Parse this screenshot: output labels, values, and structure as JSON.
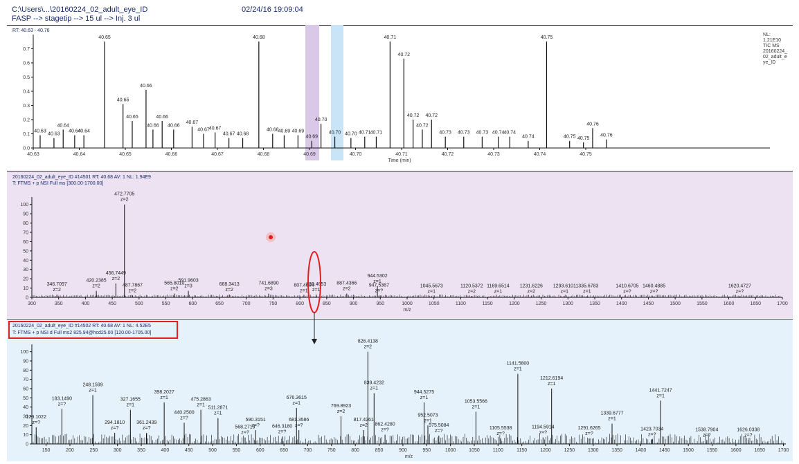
{
  "header": {
    "path": "C:\\Users\\...\\20160224_02_adult_eye_ID",
    "subtitle": "FASP --> stagetip --> 15 ul --> Inj. 3 ul",
    "datetime": "02/24/16 19:09:04"
  },
  "colors": {
    "line": "#111111",
    "panel_ms1": "#ede2f2",
    "panel_ms2": "#e6f2fb",
    "highlight_purple": "#d9c8e8",
    "highlight_blue": "#c9e4f7",
    "red": "#e02020",
    "label_blue": "#1a2a6c"
  },
  "chart_data": [
    {
      "type": "line",
      "id": "tic",
      "title": "RT: 40.63 - 40.76",
      "xlabel": "Time (min)",
      "ylabel": "",
      "xlim": [
        40.63,
        40.79
      ],
      "ylim": [
        0,
        0.78
      ],
      "yticks": [
        "0.0",
        "0.1",
        "0.2",
        "0.3",
        "0.4",
        "0.5",
        "0.6",
        "0.7"
      ],
      "xticks": [
        "40.63",
        "40.64",
        "40.65",
        "40.66",
        "40.67",
        "40.68",
        "40.69",
        "40.70",
        "40.71",
        "40.72",
        "40.73",
        "40.74",
        "40.75"
      ],
      "nl_info": [
        "NL:",
        "1.21E10",
        "TIC  MS",
        "20160224_",
        "02_adult_e",
        "ye_ID"
      ],
      "peaks": [
        {
          "x": 40.6315,
          "y": 0.09,
          "label": "40.63"
        },
        {
          "x": 40.6345,
          "y": 0.07,
          "label": "40.63"
        },
        {
          "x": 40.6365,
          "y": 0.13,
          "label": "40.64"
        },
        {
          "x": 40.639,
          "y": 0.09,
          "label": "40.64"
        },
        {
          "x": 40.641,
          "y": 0.09,
          "label": "40.64"
        },
        {
          "x": 40.6455,
          "y": 0.75,
          "label": "40.65"
        },
        {
          "x": 40.6495,
          "y": 0.31,
          "label": "40.65"
        },
        {
          "x": 40.6515,
          "y": 0.19,
          "label": "40.65"
        },
        {
          "x": 40.6545,
          "y": 0.41,
          "label": "40.66"
        },
        {
          "x": 40.656,
          "y": 0.13,
          "label": "40.66"
        },
        {
          "x": 40.658,
          "y": 0.19,
          "label": "40.66"
        },
        {
          "x": 40.6605,
          "y": 0.13,
          "label": "40.66"
        },
        {
          "x": 40.6645,
          "y": 0.15,
          "label": "40.67"
        },
        {
          "x": 40.667,
          "y": 0.1,
          "label": "40.67"
        },
        {
          "x": 40.6695,
          "y": 0.11,
          "label": "40.67"
        },
        {
          "x": 40.6725,
          "y": 0.07,
          "label": "40.67"
        },
        {
          "x": 40.6755,
          "y": 0.07,
          "label": "40.68"
        },
        {
          "x": 40.679,
          "y": 0.75,
          "label": "40.68"
        },
        {
          "x": 40.682,
          "y": 0.1,
          "label": "40.68"
        },
        {
          "x": 40.6845,
          "y": 0.09,
          "label": "40.69"
        },
        {
          "x": 40.6875,
          "y": 0.09,
          "label": "40.69"
        },
        {
          "x": 40.6905,
          "y": 0.05,
          "label": "40.69"
        },
        {
          "x": 40.6925,
          "y": 0.17,
          "label": "40.70"
        },
        {
          "x": 40.6955,
          "y": 0.08,
          "label": "40.70"
        },
        {
          "x": 40.699,
          "y": 0.07,
          "label": "40.70"
        },
        {
          "x": 40.702,
          "y": 0.08,
          "label": "40.71"
        },
        {
          "x": 40.7045,
          "y": 0.08,
          "label": "40.71"
        },
        {
          "x": 40.7075,
          "y": 0.75,
          "label": "40.71"
        },
        {
          "x": 40.7105,
          "y": 0.63,
          "label": "40.72"
        },
        {
          "x": 40.7125,
          "y": 0.2,
          "label": "40.72"
        },
        {
          "x": 40.7145,
          "y": 0.13,
          "label": "40.72"
        },
        {
          "x": 40.7165,
          "y": 0.2,
          "label": "40.72"
        },
        {
          "x": 40.7195,
          "y": 0.08,
          "label": "40.73"
        },
        {
          "x": 40.7235,
          "y": 0.08,
          "label": "40.73"
        },
        {
          "x": 40.7275,
          "y": 0.08,
          "label": "40.73"
        },
        {
          "x": 40.731,
          "y": 0.08,
          "label": "40.74"
        },
        {
          "x": 40.7335,
          "y": 0.08,
          "label": "40.74"
        },
        {
          "x": 40.7375,
          "y": 0.05,
          "label": "40.74"
        },
        {
          "x": 40.7415,
          "y": 0.75,
          "label": "40.75"
        },
        {
          "x": 40.7465,
          "y": 0.05,
          "label": "40.75"
        },
        {
          "x": 40.7495,
          "y": 0.04,
          "label": "40.75"
        },
        {
          "x": 40.7515,
          "y": 0.14,
          "label": "40.76"
        },
        {
          "x": 40.7545,
          "y": 0.06,
          "label": "40.76"
        }
      ]
    },
    {
      "type": "bar",
      "id": "ms1",
      "info1": "20160224_02_adult_eye_ID #14501   RT: 40.68   AV: 1   NL: 1.94E9",
      "info2": "T: FTMS + p NSI Full ms [300.00-1700.00]",
      "xlabel": "m/z",
      "xlim": [
        300,
        1700
      ],
      "ylim": [
        0,
        105
      ],
      "xticks": [
        "300",
        "350",
        "400",
        "450",
        "500",
        "550",
        "600",
        "650",
        "700",
        "750",
        "800",
        "850",
        "900",
        "950",
        "1000",
        "1050",
        "1100",
        "1150",
        "1200",
        "1250",
        "1300",
        "1350",
        "1400",
        "1450",
        "1500",
        "1550",
        "1600",
        "1650",
        "1700"
      ],
      "yticks": [
        "0",
        "10",
        "20",
        "30",
        "40",
        "50",
        "60",
        "70",
        "80",
        "90",
        "100"
      ],
      "peaks": [
        {
          "x": 346.71,
          "y": 3,
          "label": "346.7097",
          "z": "z=2"
        },
        {
          "x": 420.24,
          "y": 7,
          "label": "420.2385",
          "z": "z=2"
        },
        {
          "x": 456.74,
          "y": 15,
          "label": "456.7449",
          "z": "z=2"
        },
        {
          "x": 472.77,
          "y": 100,
          "label": "472.7705",
          "z": "z=2"
        },
        {
          "x": 487.79,
          "y": 2,
          "label": "487.7867",
          "z": "z=2"
        },
        {
          "x": 565.8,
          "y": 4,
          "label": "565.8010",
          "z": "z=2"
        },
        {
          "x": 591.96,
          "y": 7,
          "label": "591.9603",
          "z": "z=3"
        },
        {
          "x": 668.34,
          "y": 3,
          "label": "668.3413",
          "z": "z=2"
        },
        {
          "x": 741.69,
          "y": 4,
          "label": "741.6890",
          "z": "z=3"
        },
        {
          "x": 807.46,
          "y": 2,
          "label": "807.4604",
          "z": "z=1"
        },
        {
          "x": 830.47,
          "y": 3,
          "label": "830.4653",
          "z": "z=1"
        },
        {
          "x": 887.44,
          "y": 4,
          "label": "887.4366",
          "z": "z=2"
        },
        {
          "x": 944.53,
          "y": 12,
          "label": "944.5302",
          "z": "z=1"
        },
        {
          "x": 947.54,
          "y": 2,
          "label": "947.5367",
          "z": "z=?"
        },
        {
          "x": 1045.57,
          "y": 1,
          "label": "1045.5673",
          "z": "z=1"
        },
        {
          "x": 1120.54,
          "y": 1,
          "label": "1120.5372",
          "z": "z=2"
        },
        {
          "x": 1169.65,
          "y": 1,
          "label": "1169.6514",
          "z": "z=1"
        },
        {
          "x": 1231.62,
          "y": 1,
          "label": "1231.6226",
          "z": "z=2"
        },
        {
          "x": 1293.61,
          "y": 1,
          "label": "1293.6101",
          "z": "z=1"
        },
        {
          "x": 1335.68,
          "y": 1,
          "label": "1335.6783",
          "z": "z=1"
        },
        {
          "x": 1410.67,
          "y": 1,
          "label": "1410.6705",
          "z": "z=?"
        },
        {
          "x": 1460.49,
          "y": 1,
          "label": "1460.4885",
          "z": "z=?"
        },
        {
          "x": 1620.47,
          "y": 1,
          "label": "1620.4727",
          "z": "z=?"
        }
      ]
    },
    {
      "type": "bar",
      "id": "ms2",
      "info1": "20160224_02_adult_eye_ID #14502   RT: 40.68   AV: 1   NL: 4.52E5",
      "info2": "T: FTMS + p NSI d Full ms2 825.94@hcd25.00 [120.00-1705.00]",
      "xlabel": "m/z",
      "xlim": [
        120,
        1705
      ],
      "ylim": [
        0,
        105
      ],
      "xticks": [
        "150",
        "200",
        "250",
        "300",
        "350",
        "400",
        "450",
        "500",
        "550",
        "600",
        "650",
        "700",
        "750",
        "800",
        "850",
        "900",
        "950",
        "1000",
        "1050",
        "1100",
        "1150",
        "1200",
        "1250",
        "1300",
        "1350",
        "1400",
        "1450",
        "1500",
        "1550",
        "1600",
        "1650",
        "1700"
      ],
      "yticks": [
        "0",
        "10",
        "20",
        "30",
        "40",
        "50",
        "60",
        "70",
        "80",
        "90",
        "100"
      ],
      "peaks": [
        {
          "x": 129.1,
          "y": 18,
          "label": "129.1022",
          "z": "z=?"
        },
        {
          "x": 183.15,
          "y": 38,
          "label": "183.1490",
          "z": "z=?"
        },
        {
          "x": 248.16,
          "y": 53,
          "label": "248.1599",
          "z": "z=1"
        },
        {
          "x": 294.18,
          "y": 12,
          "label": "294.1810",
          "z": "z=?"
        },
        {
          "x": 327.17,
          "y": 37,
          "label": "327.1655",
          "z": "z=1"
        },
        {
          "x": 361.24,
          "y": 12,
          "label": "361.2439",
          "z": "z=?"
        },
        {
          "x": 398.2,
          "y": 45,
          "label": "398.2027",
          "z": "z=1"
        },
        {
          "x": 440.25,
          "y": 23,
          "label": "440.2500",
          "z": "z=?"
        },
        {
          "x": 475.29,
          "y": 37,
          "label": "475.2863",
          "z": "z=1"
        },
        {
          "x": 511.29,
          "y": 28,
          "label": "511.2871",
          "z": "z=1"
        },
        {
          "x": 568.27,
          "y": 7,
          "label": "568.2719",
          "z": "z=?"
        },
        {
          "x": 590.32,
          "y": 15,
          "label": "590.3151",
          "z": "z=?"
        },
        {
          "x": 646.32,
          "y": 8,
          "label": "646.3180",
          "z": "z=?"
        },
        {
          "x": 676.36,
          "y": 39,
          "label": "676.3615",
          "z": "z=1"
        },
        {
          "x": 681.36,
          "y": 15,
          "label": "681.3586",
          "z": "z=?"
        },
        {
          "x": 769.89,
          "y": 30,
          "label": "769.8923",
          "z": "z=2"
        },
        {
          "x": 817.43,
          "y": 15,
          "label": "817.4261",
          "z": "z=2"
        },
        {
          "x": 826.41,
          "y": 100,
          "label": "826.4138",
          "z": "z=2"
        },
        {
          "x": 839.42,
          "y": 55,
          "label": "839.4232",
          "z": "z=1"
        },
        {
          "x": 862.43,
          "y": 10,
          "label": "862.4280",
          "z": "z=?"
        },
        {
          "x": 944.53,
          "y": 45,
          "label": "944.5275",
          "z": "z=1"
        },
        {
          "x": 952.51,
          "y": 20,
          "label": "952.5073",
          "z": "z=1"
        },
        {
          "x": 975.51,
          "y": 9,
          "label": "975.5084",
          "z": "z=?"
        },
        {
          "x": 1053.56,
          "y": 35,
          "label": "1053.5566",
          "z": "z=1"
        },
        {
          "x": 1105.55,
          "y": 6,
          "label": "1105.5538",
          "z": "z=?"
        },
        {
          "x": 1141.58,
          "y": 76,
          "label": "1141.5800",
          "z": "z=1"
        },
        {
          "x": 1194.59,
          "y": 7,
          "label": "1194.5914",
          "z": "z=?"
        },
        {
          "x": 1212.62,
          "y": 60,
          "label": "1212.6194",
          "z": "z=1"
        },
        {
          "x": 1291.63,
          "y": 6,
          "label": "1291.6265",
          "z": "z=?"
        },
        {
          "x": 1339.68,
          "y": 22,
          "label": "1339.6777",
          "z": "z=1"
        },
        {
          "x": 1423.7,
          "y": 5,
          "label": "1423.7034",
          "z": "z=?"
        },
        {
          "x": 1441.72,
          "y": 47,
          "label": "1441.7247",
          "z": "z=1"
        },
        {
          "x": 1538.79,
          "y": 4,
          "label": "1538.7904",
          "z": "z=?"
        },
        {
          "x": 1626.03,
          "y": 4,
          "label": "1626.0338",
          "z": "z=?"
        }
      ]
    }
  ]
}
